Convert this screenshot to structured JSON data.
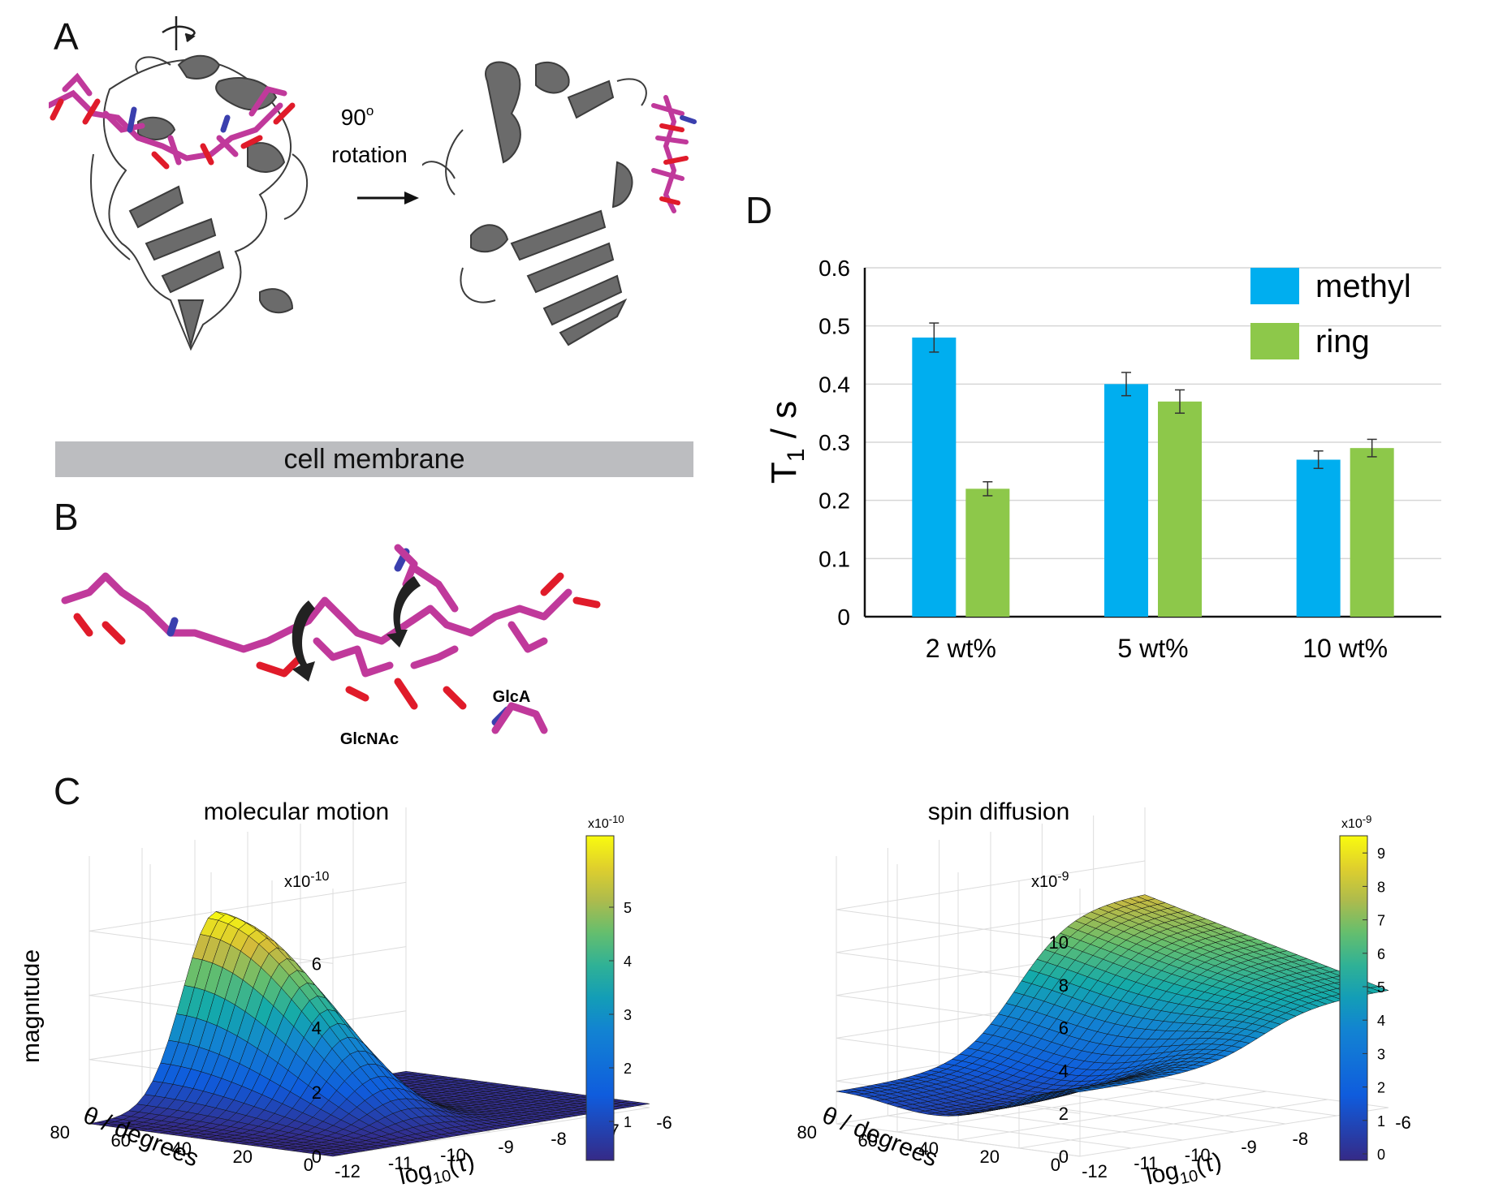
{
  "panels": {
    "a": "A",
    "b": "B",
    "c": "C",
    "d": "D"
  },
  "panel_a": {
    "rotation_line1": "90",
    "rotation_sup": "o",
    "rotation_line2": "rotation"
  },
  "membrane_label": "cell membrane",
  "panel_b": {
    "label_glcnac": "GlcNAc",
    "label_glca": "GlcA"
  },
  "colors": {
    "protein": "#6b6b6b",
    "ligand": "#c0399b",
    "oxygen": "#e01b2a",
    "nitrogen": "#3a3fae",
    "methyl": "#00aeef",
    "ring": "#8dc84a",
    "membrane": "#bcbdc0"
  },
  "chart_data": [
    {
      "type": "bar",
      "panel": "D",
      "ylabel": "T",
      "ylabel_sub": "1",
      "ylabel_unit": " / s",
      "ylim": [
        0,
        0.6
      ],
      "yticks": [
        "0",
        "0.1",
        "0.2",
        "0.3",
        "0.4",
        "0.5",
        "0.6"
      ],
      "categories": [
        "2 wt%",
        "5 wt%",
        "10 wt%"
      ],
      "series": [
        {
          "name": "methyl",
          "color": "#00aeef",
          "values": [
            0.48,
            0.4,
            0.27
          ],
          "errors": [
            0.025,
            0.02,
            0.015
          ]
        },
        {
          "name": "ring",
          "color": "#8dc84a",
          "values": [
            0.22,
            0.37,
            0.29
          ],
          "errors": [
            0.012,
            0.02,
            0.015
          ]
        }
      ],
      "grid": true,
      "legend": "top-right"
    },
    {
      "type": "surface",
      "panel": "C-left",
      "title": "molecular motion",
      "zlabel": "magnitude",
      "xlabel_theta": "θ / degrees",
      "xlabel_tau": "log",
      "xlabel_tau_sub": "10",
      "xlabel_tau_tail": "(τ)",
      "zscale": "x10",
      "zscale_exp": "-10",
      "zticks": [
        "0",
        "2",
        "4",
        "6"
      ],
      "theta_ticks": [
        "0",
        "20",
        "40",
        "60",
        "80"
      ],
      "tau_ticks": [
        "-12",
        "-11",
        "-10",
        "-9",
        "-8",
        "-7",
        "-6"
      ],
      "colorbar_scale": "x10",
      "colorbar_exp": "-10",
      "colorbar_ticks": [
        "1",
        "2",
        "3",
        "4",
        "5"
      ]
    },
    {
      "type": "surface",
      "panel": "C-right",
      "title": "spin diffusion",
      "xlabel_theta": "θ / degrees",
      "xlabel_tau": "log",
      "xlabel_tau_sub": "10",
      "xlabel_tau_tail": "(τ)",
      "zscale": "x10",
      "zscale_exp": "-9",
      "zticks": [
        "0",
        "2",
        "4",
        "6",
        "8",
        "10"
      ],
      "theta_ticks": [
        "0",
        "20",
        "40",
        "60",
        "80"
      ],
      "tau_ticks": [
        "-12",
        "-11",
        "-10",
        "-9",
        "-8",
        "-7",
        "-6"
      ],
      "colorbar_scale": "x10",
      "colorbar_exp": "-9",
      "colorbar_ticks": [
        "0",
        "1",
        "2",
        "3",
        "4",
        "5",
        "6",
        "7",
        "8",
        "9"
      ]
    }
  ]
}
